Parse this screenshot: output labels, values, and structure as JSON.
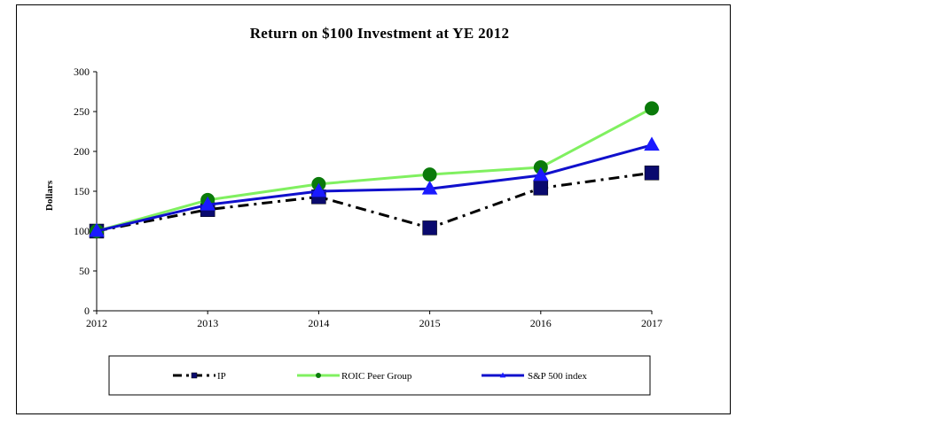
{
  "chart_data": {
    "type": "line",
    "title": "Return on $100 Investment at YE 2012",
    "xlabel": "",
    "ylabel": "Dollars",
    "x": [
      "2012",
      "2013",
      "2014",
      "2015",
      "2016",
      "2017"
    ],
    "ylim": [
      0,
      300
    ],
    "yticks": [
      0,
      50,
      100,
      150,
      200,
      250,
      300
    ],
    "legend_position": "bottom",
    "series": [
      {
        "name": "IP",
        "values": [
          100,
          127,
          143,
          104,
          154,
          173
        ],
        "color": "#000000",
        "marker": "square",
        "marker_color": "#0a0a6e",
        "line_style": "dash-dot"
      },
      {
        "name": "ROIC Peer Group",
        "values": [
          100,
          139,
          159,
          171,
          180,
          254
        ],
        "color": "#80f060",
        "marker": "circle",
        "marker_color": "#0a7a0a",
        "line_style": "solid"
      },
      {
        "name": "S&P 500 index",
        "values": [
          100,
          133,
          150,
          153,
          170,
          208
        ],
        "color": "#1010cc",
        "marker": "triangle",
        "marker_color": "#1a1aff",
        "line_style": "solid"
      }
    ]
  }
}
